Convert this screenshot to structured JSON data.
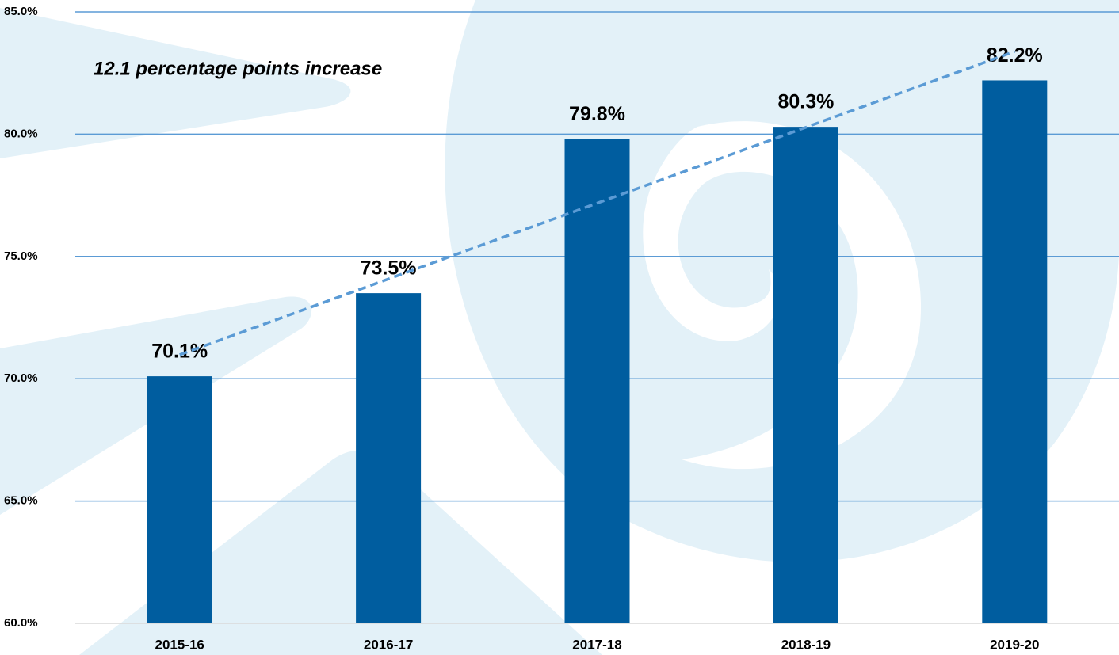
{
  "chart_data": {
    "type": "bar",
    "annotation": "12.1 percentage points increase",
    "categories": [
      "2015-16",
      "2016-17",
      "2017-18",
      "2018-19",
      "2019-20"
    ],
    "values": [
      70.1,
      73.5,
      79.8,
      80.3,
      82.2
    ],
    "value_labels": [
      "70.1%",
      "73.5%",
      "79.8%",
      "80.3%",
      "82.2%"
    ],
    "color": "#005d9f",
    "ylim": [
      60,
      85
    ],
    "yticks": [
      {
        "value": 60,
        "label": "60.0%"
      },
      {
        "value": 65,
        "label": "65.0%"
      },
      {
        "value": 70,
        "label": "70.0%"
      },
      {
        "value": 75,
        "label": "75.0%"
      },
      {
        "value": 80,
        "label": "80.0%"
      },
      {
        "value": 85,
        "label": "85.0%"
      }
    ],
    "grid": true,
    "grid_color": "#5b9bd5",
    "trendline": true,
    "trendline_color": "#5b9bd5"
  }
}
